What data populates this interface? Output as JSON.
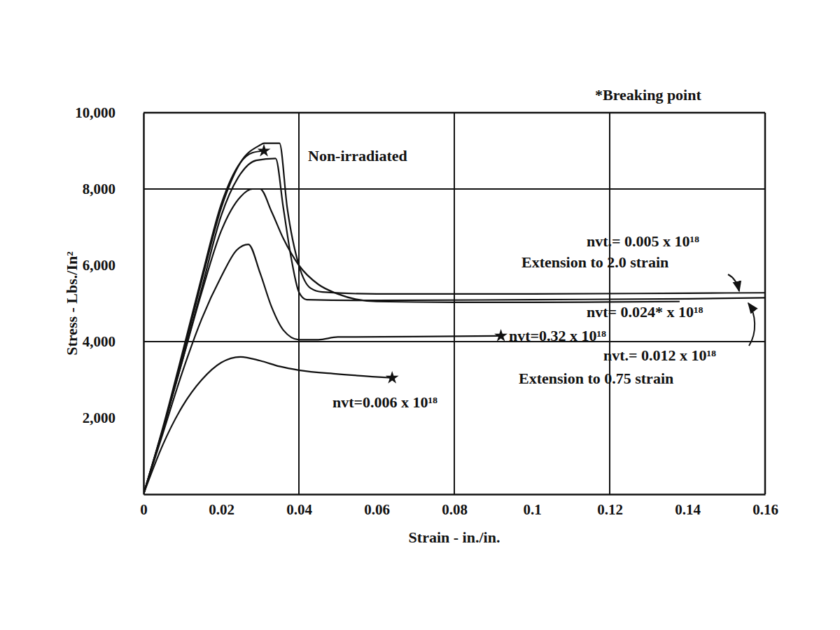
{
  "chart_data": {
    "type": "line",
    "x_label": "Strain - in./in.",
    "y_label": "Stress - Lbs./In²",
    "xlim": [
      0,
      0.16
    ],
    "xticks": [
      0,
      0.02,
      0.04,
      0.06,
      0.08,
      0.1,
      0.12,
      0.14,
      0.16
    ],
    "ylim": [
      0,
      10000
    ],
    "yticks": [
      {
        "value": 2000,
        "label": "2,000"
      },
      {
        "value": 4000,
        "label": "4,000"
      },
      {
        "value": 6000,
        "label": "6,000"
      },
      {
        "value": 8000,
        "label": "8,000"
      },
      {
        "value": 10000,
        "label": "10,000"
      }
    ],
    "grid": true,
    "annotations": [
      "*Breaking point",
      "Extension to 2.0 strain",
      "Extension to 0.75 strain"
    ],
    "series": [
      {
        "name": "nvt.= 0.005 x 10¹⁸",
        "color": "#111111",
        "x": [
          0,
          0.005,
          0.01,
          0.015,
          0.02,
          0.025,
          0.03,
          0.031,
          0.035,
          0.037,
          0.04,
          0.043,
          0.046,
          0.06,
          0.1,
          0.14,
          0.16
        ],
        "values": [
          0,
          1700,
          3600,
          5600,
          7500,
          8700,
          9150,
          9200,
          9200,
          7500,
          6000,
          5400,
          5300,
          5250,
          5250,
          5270,
          5280
        ]
      },
      {
        "name": "Non-irradiated",
        "color": "#111111",
        "marker": "star",
        "x": [
          0,
          0.005,
          0.01,
          0.015,
          0.02,
          0.025,
          0.028,
          0.031
        ],
        "values": [
          0,
          1750,
          3700,
          5700,
          7600,
          8700,
          8950,
          9000
        ]
      },
      {
        "name": "nvt.= 0.012 x 10¹⁸",
        "color": "#111111",
        "x": [
          0,
          0.005,
          0.01,
          0.015,
          0.02,
          0.025,
          0.029,
          0.034,
          0.036,
          0.038,
          0.04,
          0.042,
          0.06,
          0.1,
          0.14,
          0.16
        ],
        "values": [
          0,
          1700,
          3500,
          5400,
          7300,
          8400,
          8750,
          8800,
          7500,
          6200,
          5300,
          5100,
          5080,
          5100,
          5120,
          5150
        ]
      },
      {
        "name": "nvt= 0.024* x 10¹⁸",
        "color": "#111111",
        "x": [
          0,
          0.005,
          0.01,
          0.015,
          0.02,
          0.025,
          0.028,
          0.03,
          0.033,
          0.036,
          0.04,
          0.045,
          0.05,
          0.06,
          0.08,
          0.1,
          0.12,
          0.138
        ],
        "values": [
          0,
          1700,
          3500,
          5300,
          6900,
          7800,
          8000,
          8000,
          7400,
          6700,
          6000,
          5500,
          5250,
          5050,
          5030,
          5030,
          5040,
          5050
        ]
      },
      {
        "name": "nvt=0.32 x 10¹⁸",
        "color": "#111111",
        "marker": "star",
        "x": [
          0,
          0.005,
          0.01,
          0.015,
          0.02,
          0.024,
          0.027,
          0.03,
          0.033,
          0.036,
          0.04,
          0.045,
          0.05,
          0.07,
          0.092
        ],
        "values": [
          0,
          1600,
          3200,
          4600,
          5700,
          6400,
          6550,
          5800,
          4900,
          4300,
          4050,
          4050,
          4120,
          4130,
          4150
        ]
      },
      {
        "name": "nvt=0.006 x 10¹⁸",
        "color": "#111111",
        "marker": "star",
        "x": [
          0,
          0.005,
          0.01,
          0.015,
          0.02,
          0.025,
          0.03,
          0.035,
          0.04,
          0.05,
          0.064
        ],
        "values": [
          0,
          1300,
          2300,
          3000,
          3450,
          3600,
          3500,
          3350,
          3250,
          3150,
          3050
        ]
      }
    ]
  }
}
